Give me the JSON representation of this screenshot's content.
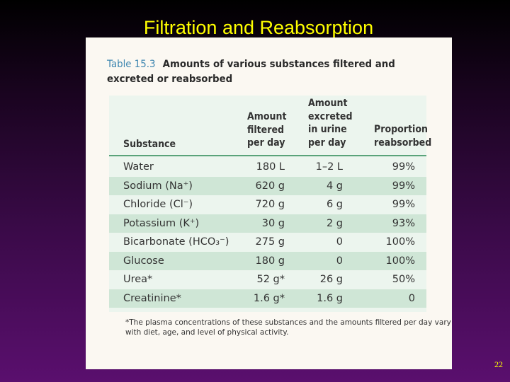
{
  "slide": {
    "title": "Filtration and Reabsorption",
    "page_number": "22"
  },
  "table": {
    "number": "Table 15.3",
    "caption": "Amounts of various substances filtered and excreted or reabsorbed",
    "headers": {
      "substance": "Substance",
      "filtered": "Amount filtered per day",
      "excreted": "Amount excreted in urine per day",
      "proportion": "Proportion reabsorbed"
    },
    "rows": [
      {
        "substance": "Water",
        "filtered": "180 L",
        "excreted": "1–2 L",
        "proportion": "99%"
      },
      {
        "substance": "Sodium (Na⁺)",
        "filtered": "620 g",
        "excreted": "4 g",
        "proportion": "99%"
      },
      {
        "substance": "Chloride (Cl⁻)",
        "filtered": "720 g",
        "excreted": "6 g",
        "proportion": "99%"
      },
      {
        "substance": "Potassium (K⁺)",
        "filtered": "30 g",
        "excreted": "2 g",
        "proportion": "93%"
      },
      {
        "substance": "Bicarbonate (HCO₃⁻)",
        "filtered": "275 g",
        "excreted": "0",
        "proportion": "100%"
      },
      {
        "substance": "Glucose",
        "filtered": "180 g",
        "excreted": "0",
        "proportion": "100%"
      },
      {
        "substance": "Urea*",
        "filtered": "52 g*",
        "excreted": "26 g",
        "proportion": "50%"
      },
      {
        "substance": "Creatinine*",
        "filtered": "1.6 g*",
        "excreted": "1.6 g",
        "proportion": "0"
      }
    ],
    "footnote": "*The plasma concentrations of these substances and the amounts filtered per day vary with diet, age, and level of physical activity."
  }
}
